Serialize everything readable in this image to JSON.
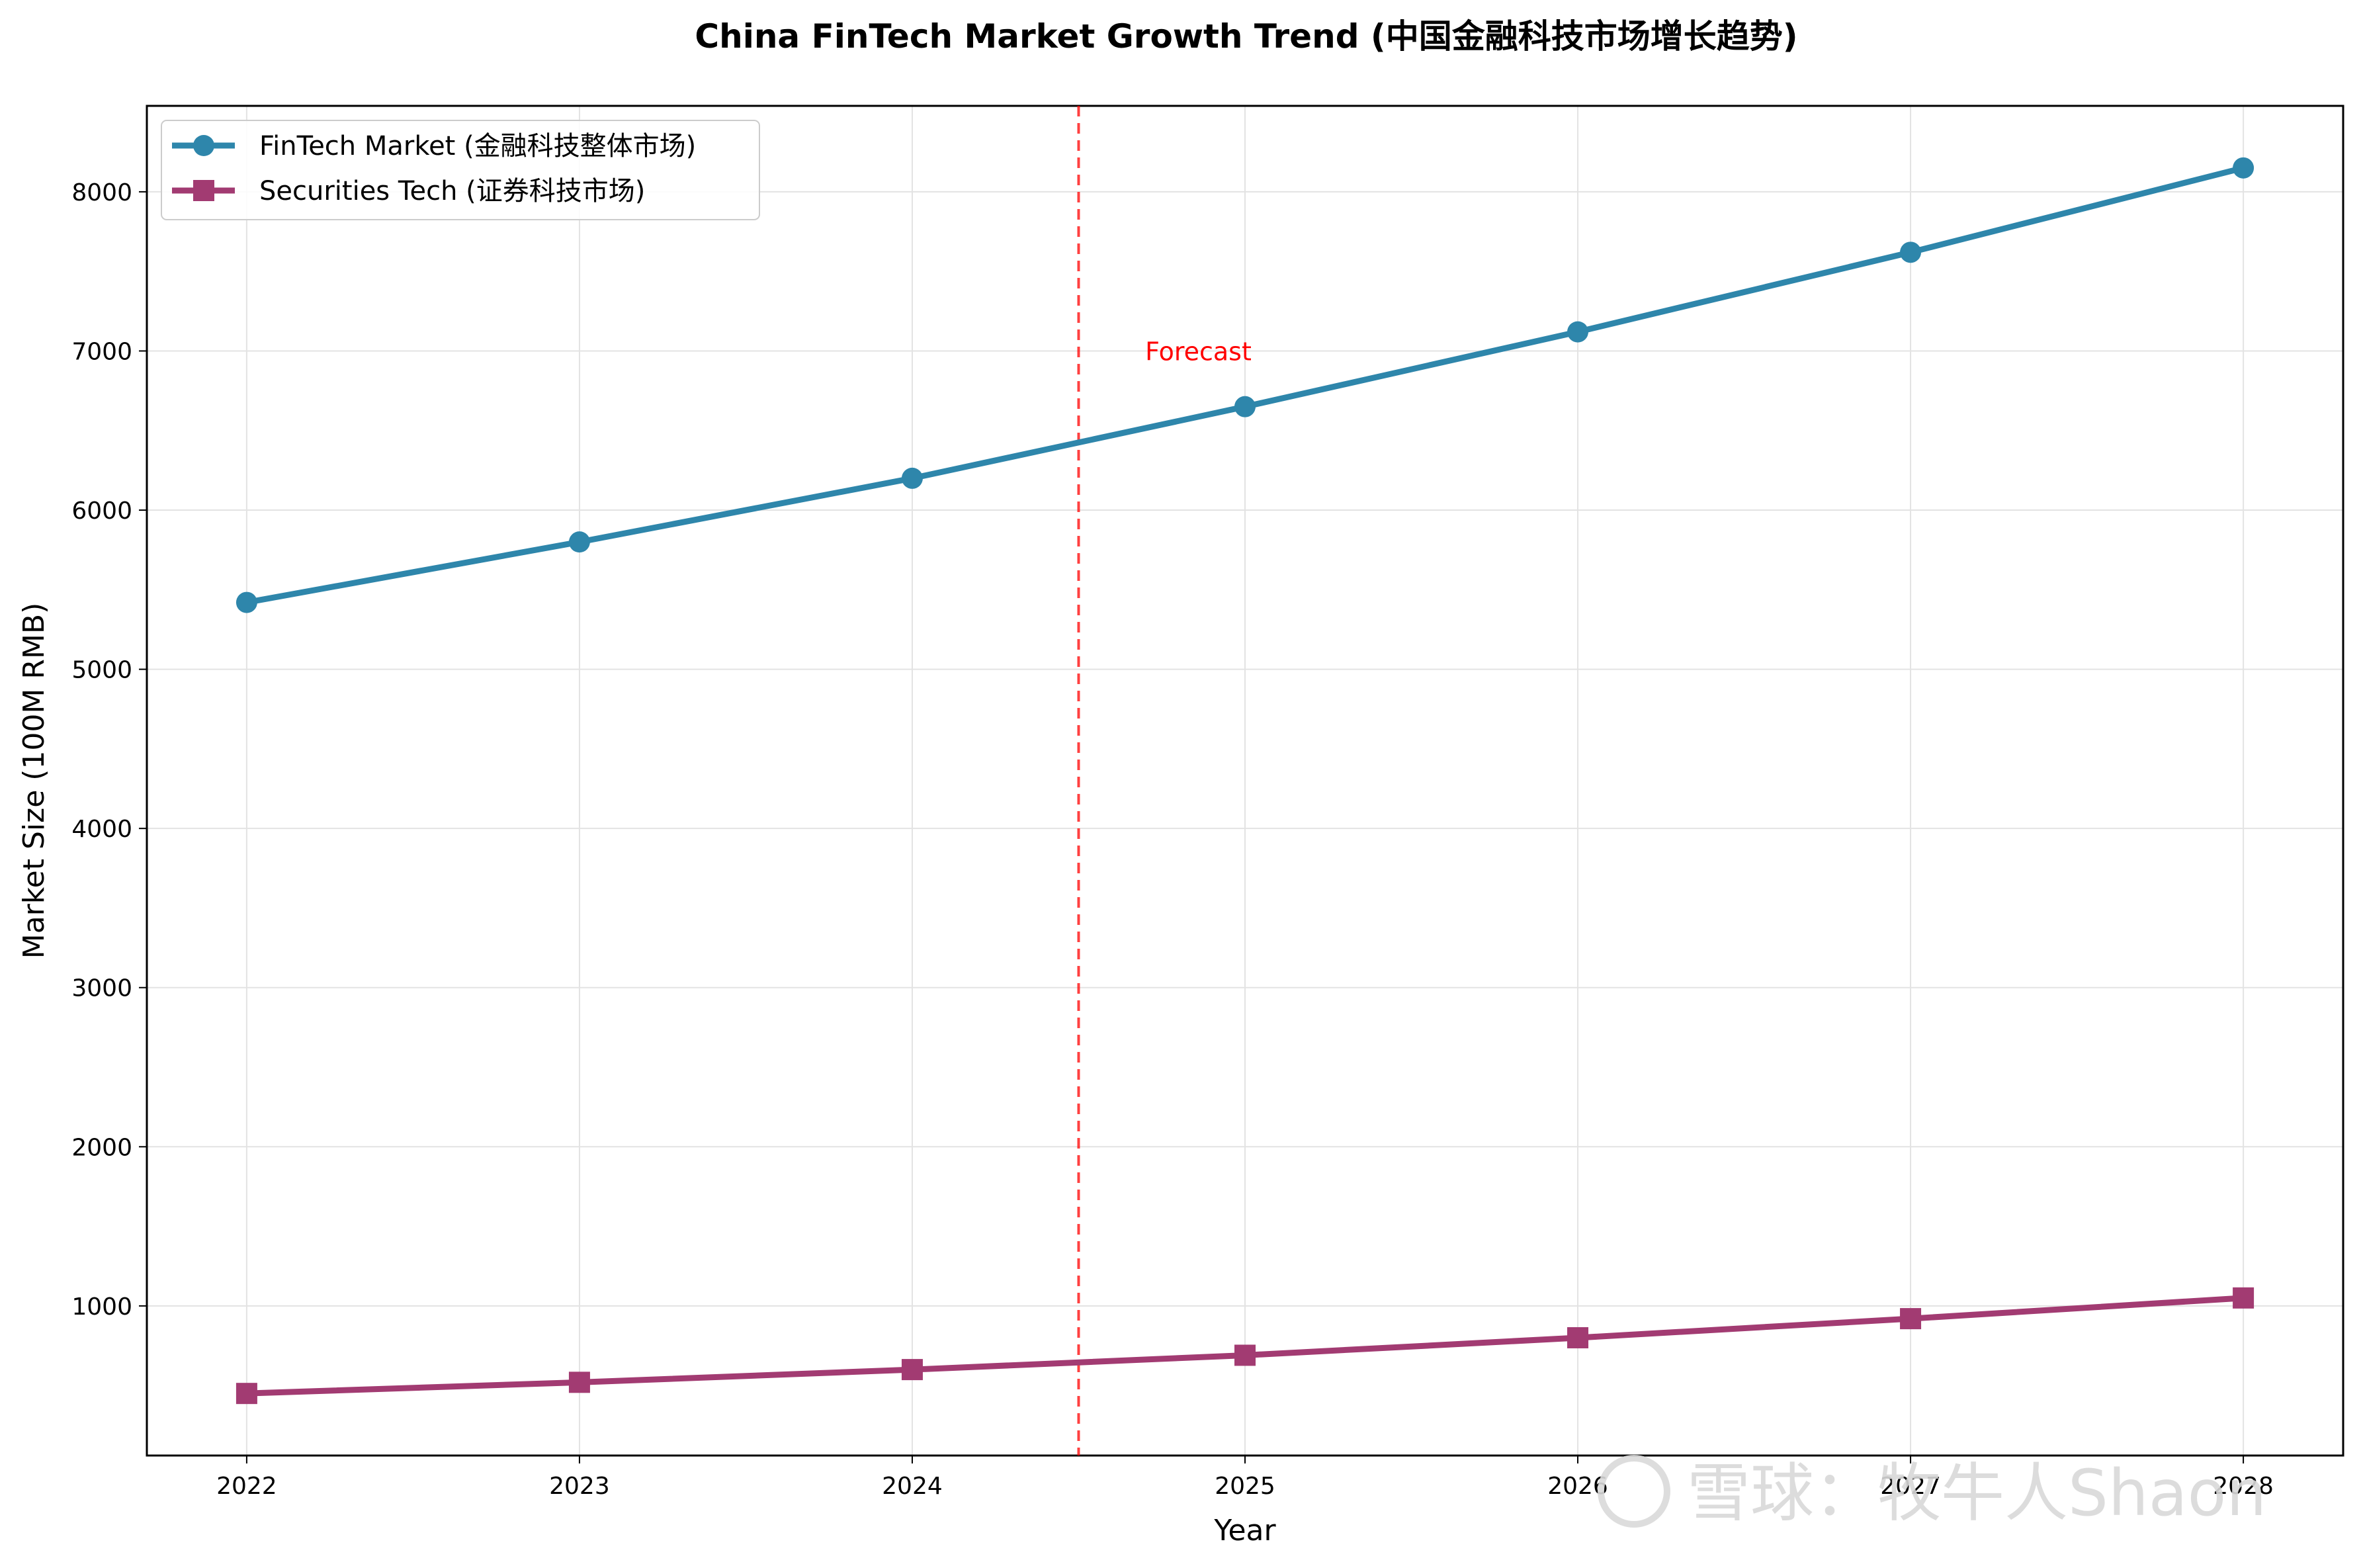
{
  "chart_data": {
    "type": "line",
    "title": "China FinTech Market Growth Trend (中国金融科技市场增长趋势)",
    "xlabel": "Year",
    "ylabel": "Market Size (100M RMB)",
    "x": [
      2022,
      2023,
      2024,
      2025,
      2026,
      2027,
      2028
    ],
    "xlim": [
      2021.7,
      2028.3
    ],
    "ylim": [
      60,
      8540
    ],
    "yticks": [
      1000,
      2000,
      3000,
      4000,
      5000,
      6000,
      7000,
      8000
    ],
    "grid": true,
    "legend_position": "top-left",
    "series": [
      {
        "name": "FinTech Market (金融科技整体市场)",
        "color": "#2e86ab",
        "marker": "circle",
        "values": [
          5420,
          5800,
          6200,
          6650,
          7120,
          7620,
          8150
        ]
      },
      {
        "name": "Securities Tech (证券科技市场)",
        "color": "#a23b72",
        "marker": "square",
        "values": [
          450,
          520,
          600,
          690,
          800,
          920,
          1050
        ]
      }
    ],
    "forecast_line": {
      "x": 2024.5,
      "color": "#ff0000",
      "label": "Forecast",
      "label_x": 2024.7,
      "label_y": 7000
    }
  },
  "watermark": {
    "text": "雪球：牧牛人Shaon"
  }
}
